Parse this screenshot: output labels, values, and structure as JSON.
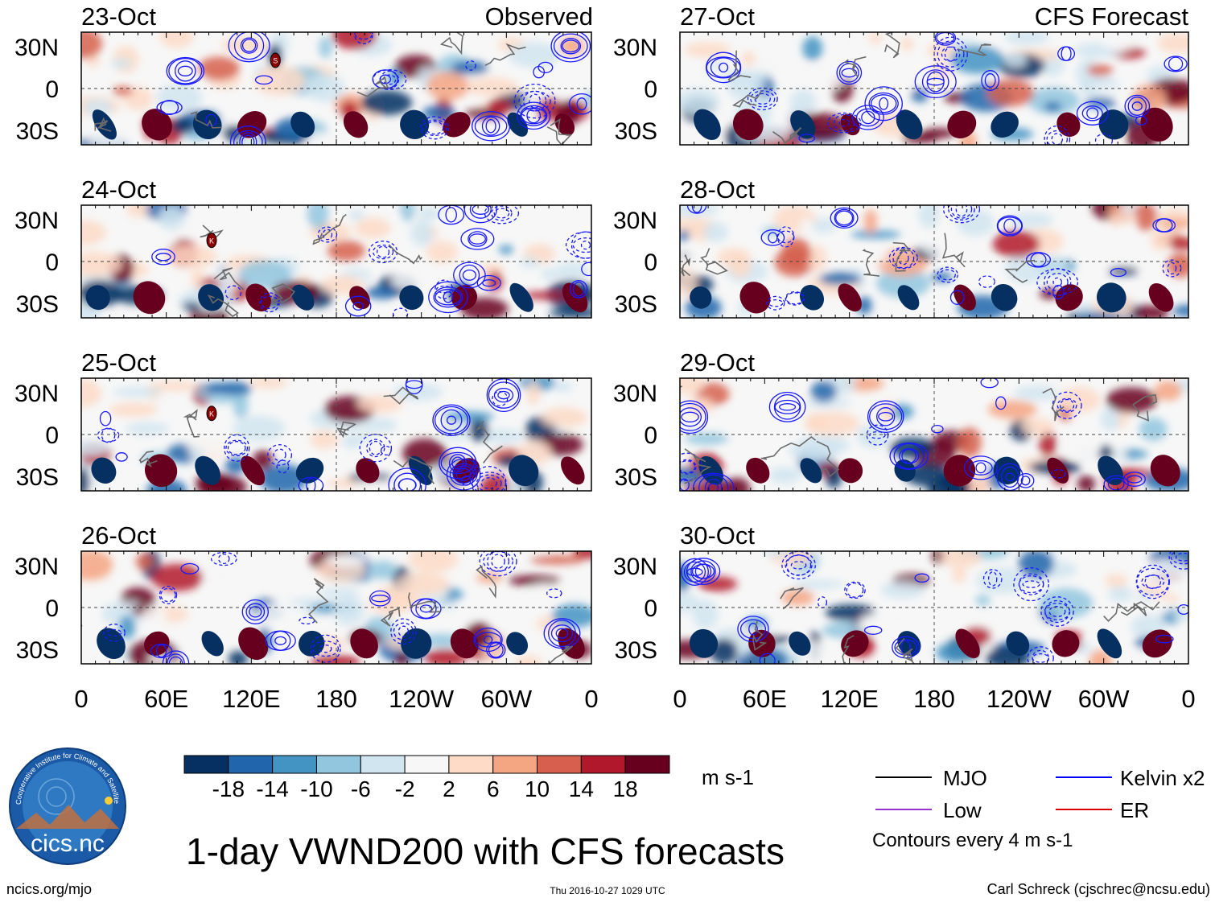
{
  "header": {
    "left_label": "Observed",
    "right_label": "CFS Forecast"
  },
  "panels": [
    {
      "date": "23-Oct",
      "column": "observed"
    },
    {
      "date": "24-Oct",
      "column": "observed"
    },
    {
      "date": "25-Oct",
      "column": "observed"
    },
    {
      "date": "26-Oct",
      "column": "observed"
    },
    {
      "date": "27-Oct",
      "column": "forecast"
    },
    {
      "date": "28-Oct",
      "column": "forecast"
    },
    {
      "date": "29-Oct",
      "column": "forecast"
    },
    {
      "date": "30-Oct",
      "column": "forecast"
    }
  ],
  "chart_data": {
    "type": "heatmap",
    "title": "1-day VWND200 with CFS forecasts",
    "variable": "VWND200",
    "units": "m s-1",
    "x_ticks": [
      "0",
      "60E",
      "120E",
      "180",
      "120W",
      "60W",
      "0"
    ],
    "x_range_deg": [
      0,
      360
    ],
    "y_ticks": [
      "30N",
      "0",
      "30S"
    ],
    "y_range_deg": [
      -40,
      40
    ],
    "colorbar": {
      "labels": [
        "-18",
        "-14",
        "-10",
        "-6",
        "-2",
        "2",
        "6",
        "10",
        "14",
        "18"
      ],
      "colors": [
        "#053061",
        "#2166ac",
        "#4393c3",
        "#92c5de",
        "#d1e5f0",
        "#f7f7f7",
        "#fddbc7",
        "#f4a582",
        "#d6604d",
        "#b2182b",
        "#67001f"
      ]
    },
    "markers": [
      {
        "panel": "23-Oct",
        "label": "S",
        "lon": 137,
        "lat": 20
      },
      {
        "panel": "24-Oct",
        "label": "K",
        "lon": 92,
        "lat": 15
      },
      {
        "panel": "25-Oct",
        "label": "K",
        "lon": 92,
        "lat": 15
      }
    ],
    "legend": [
      {
        "name": "MJO",
        "color": "#000000"
      },
      {
        "name": "Kelvin x2",
        "color": "#0000ff"
      },
      {
        "name": "Low",
        "color": "#9933cc"
      },
      {
        "name": "ER",
        "color": "#dd0000"
      }
    ],
    "contour_note": "Contours every 4 m s-1"
  },
  "footer": {
    "logo_text": "cics.nc",
    "logo_arc_text": "Cooperative Institute for Climate and Satellites",
    "left": "ncics.org/mjo",
    "center": "Thu 2016-10-27 1029 UTC",
    "right": "Carl Schreck (cjschrec@ncsu.edu)"
  }
}
